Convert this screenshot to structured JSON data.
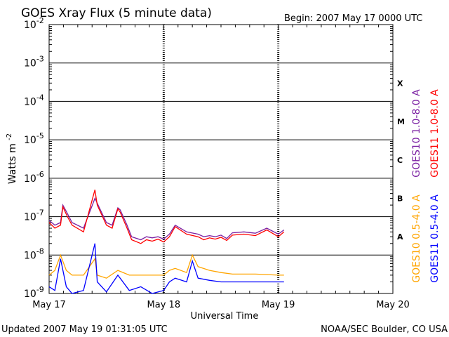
{
  "header": {
    "title": "GOES Xray Flux (5 minute data)",
    "begin": "Begin:  2007 May 17 0000 UTC"
  },
  "footer": {
    "updated": "Updated 2007 May 19 01:31:05 UTC",
    "credit": "NOAA/SEC Boulder, CO USA"
  },
  "chart_data": {
    "type": "line",
    "title": "GOES Xray Flux (5 minute data)",
    "xlabel": "Universal Time",
    "ylabel": "Watts m",
    "ylabel_sup": "-2",
    "yscale": "log",
    "ylim": [
      1e-09,
      0.01
    ],
    "xlim_days": [
      0,
      3
    ],
    "x_ticks": [
      "May 17",
      "May 18",
      "May 19",
      "May 20"
    ],
    "y_ticks": [
      {
        "base": "10",
        "exp": "-2",
        "value": 0.01
      },
      {
        "base": "10",
        "exp": "-3",
        "value": 0.001
      },
      {
        "base": "10",
        "exp": "-4",
        "value": 0.0001
      },
      {
        "base": "10",
        "exp": "-5",
        "value": 1e-05
      },
      {
        "base": "10",
        "exp": "-6",
        "value": 1e-06
      },
      {
        "base": "10",
        "exp": "-7",
        "value": 1e-07
      },
      {
        "base": "10",
        "exp": "-8",
        "value": 1e-08
      },
      {
        "base": "10",
        "exp": "-9",
        "value": 1e-09
      }
    ],
    "flare_classes": [
      {
        "label": "X",
        "value": 0.0003
      },
      {
        "label": "M",
        "value": 3e-05
      },
      {
        "label": "C",
        "value": 3e-06
      },
      {
        "label": "B",
        "value": 3e-07
      },
      {
        "label": "A",
        "value": 3e-08
      }
    ],
    "grid": true,
    "legend_position": "right",
    "series": [
      {
        "name": "GOES10 1.0-8.0 A",
        "color": "#7a1fa2",
        "x": [
          0,
          0.05,
          0.1,
          0.12,
          0.16,
          0.2,
          0.3,
          0.4,
          0.5,
          0.55,
          0.6,
          0.62,
          0.68,
          0.72,
          0.8,
          0.85,
          0.9,
          0.95,
          1.0,
          1.05,
          1.1,
          1.2,
          1.3,
          1.35,
          1.4,
          1.45,
          1.5,
          1.55,
          1.6,
          1.7,
          1.8,
          1.9,
          2.0,
          2.05
        ],
        "y": [
          8e-08,
          6e-08,
          7e-08,
          2e-07,
          1.2e-07,
          7e-08,
          5e-08,
          3e-07,
          7e-08,
          6e-08,
          1.7e-07,
          1.5e-07,
          6e-08,
          3e-08,
          2.5e-08,
          3e-08,
          2.8e-08,
          3e-08,
          2.6e-08,
          3.5e-08,
          6e-08,
          4e-08,
          3.5e-08,
          3e-08,
          3.2e-08,
          3e-08,
          3.3e-08,
          2.7e-08,
          3.8e-08,
          4e-08,
          3.7e-08,
          5e-08,
          3.5e-08,
          4.5e-08
        ]
      },
      {
        "name": "GOES11 1.0-8.0 A",
        "color": "#ff0000",
        "x": [
          0,
          0.05,
          0.1,
          0.12,
          0.16,
          0.2,
          0.3,
          0.4,
          0.42,
          0.5,
          0.55,
          0.6,
          0.62,
          0.68,
          0.72,
          0.8,
          0.85,
          0.9,
          0.95,
          1.0,
          1.05,
          1.1,
          1.2,
          1.3,
          1.35,
          1.4,
          1.45,
          1.5,
          1.55,
          1.6,
          1.7,
          1.8,
          1.9,
          2.0,
          2.05
        ],
        "y": [
          7e-08,
          5e-08,
          6e-08,
          1.8e-07,
          1e-07,
          6e-08,
          4e-08,
          5e-07,
          2e-07,
          6e-08,
          5e-08,
          1.6e-07,
          1.3e-07,
          5e-08,
          2.5e-08,
          2e-08,
          2.5e-08,
          2.3e-08,
          2.6e-08,
          2.2e-08,
          3e-08,
          5.5e-08,
          3.5e-08,
          3e-08,
          2.5e-08,
          2.8e-08,
          2.6e-08,
          2.9e-08,
          2.4e-08,
          3.3e-08,
          3.5e-08,
          3.2e-08,
          4.5e-08,
          3e-08,
          4e-08
        ]
      },
      {
        "name": "GOES10 0.5-4.0 A",
        "color": "#ffa500",
        "x": [
          0,
          0.05,
          0.1,
          0.15,
          0.2,
          0.3,
          0.4,
          0.42,
          0.5,
          0.6,
          0.7,
          0.8,
          0.9,
          1.0,
          1.05,
          1.1,
          1.2,
          1.25,
          1.3,
          1.4,
          1.5,
          1.6,
          1.7,
          1.8,
          1.9,
          2.0,
          2.05
        ],
        "y": [
          3e-09,
          4e-09,
          1e-08,
          4e-09,
          3e-09,
          3e-09,
          8e-09,
          3e-09,
          2.5e-09,
          4e-09,
          3e-09,
          3e-09,
          3e-09,
          3e-09,
          4e-09,
          4.5e-09,
          3.5e-09,
          1e-08,
          5e-09,
          4e-09,
          3.5e-09,
          3.2e-09,
          3.2e-09,
          3.2e-09,
          3.1e-09,
          3e-09,
          3e-09
        ]
      },
      {
        "name": "GOES11 0.5-4.0 A",
        "color": "#0000ff",
        "x": [
          0,
          0.05,
          0.1,
          0.15,
          0.2,
          0.3,
          0.4,
          0.42,
          0.5,
          0.6,
          0.7,
          0.8,
          0.9,
          1.0,
          1.05,
          1.1,
          1.2,
          1.25,
          1.3,
          1.4,
          1.5,
          1.6,
          1.7,
          1.8,
          1.9,
          2.0,
          2.05
        ],
        "y": [
          1.5e-09,
          1.2e-09,
          8e-09,
          1.5e-09,
          1e-09,
          1.2e-09,
          2e-08,
          2e-09,
          1.1e-09,
          3e-09,
          1.2e-09,
          1.5e-09,
          1e-09,
          1.2e-09,
          2e-09,
          2.5e-09,
          2e-09,
          7e-09,
          2.5e-09,
          2.2e-09,
          2e-09,
          2e-09,
          2e-09,
          2e-09,
          2e-09,
          2e-09,
          2e-09
        ]
      }
    ]
  }
}
